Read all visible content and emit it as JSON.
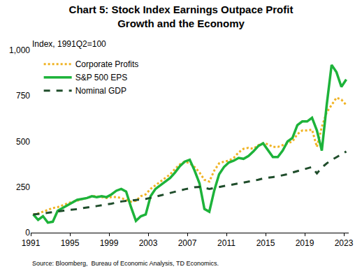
{
  "chart_data": {
    "type": "line",
    "title": [
      "Chart 5: Stock Index Earnings Outpace Profit",
      "Growth and the Economy"
    ],
    "ylabel": "Index, 1991Q2=100",
    "source": "Source: Bloomberg,  Bureau of Economic Analysis, TD Economics.",
    "x": [
      1991.25,
      1991.75,
      1992.25,
      1992.75,
      1993.25,
      1993.75,
      1994.25,
      1994.75,
      1995.25,
      1995.75,
      1996.25,
      1996.75,
      1997.25,
      1997.75,
      1998.25,
      1998.75,
      1999.25,
      1999.75,
      2000.25,
      2000.75,
      2001.25,
      2001.75,
      2002.25,
      2002.75,
      2003.25,
      2003.75,
      2004.25,
      2004.75,
      2005.25,
      2005.75,
      2006.25,
      2006.75,
      2007.25,
      2007.75,
      2008.25,
      2008.75,
      2009.25,
      2009.75,
      2010.25,
      2010.75,
      2011.25,
      2011.75,
      2012.25,
      2012.75,
      2013.25,
      2013.75,
      2014.25,
      2014.75,
      2015.25,
      2015.75,
      2016.25,
      2016.75,
      2017.25,
      2017.75,
      2018.25,
      2018.75,
      2019.25,
      2019.75,
      2020.25,
      2020.75,
      2021.25,
      2021.75,
      2022.25,
      2022.75,
      2023.25
    ],
    "series": [
      {
        "name": "Corporate Profits",
        "color": "#F0B323",
        "line_style": "dot",
        "values": [
          100,
          105,
          115,
          125,
          135,
          140,
          150,
          160,
          170,
          175,
          185,
          190,
          200,
          200,
          195,
          190,
          195,
          195,
          190,
          180,
          170,
          175,
          200,
          210,
          240,
          260,
          280,
          300,
          320,
          350,
          375,
          390,
          380,
          360,
          330,
          290,
          280,
          340,
          380,
          390,
          395,
          410,
          440,
          460,
          465,
          460,
          480,
          490,
          485,
          470,
          470,
          480,
          490,
          500,
          540,
          560,
          560,
          565,
          470,
          580,
          660,
          700,
          740,
          730,
          700
        ]
      },
      {
        "name": "S&P 500 EPS",
        "color": "#1DB33A",
        "line_style": "solid",
        "values": [
          100,
          70,
          90,
          55,
          60,
          120,
          135,
          150,
          165,
          180,
          185,
          190,
          200,
          195,
          200,
          195,
          210,
          230,
          240,
          225,
          140,
          65,
          90,
          100,
          200,
          240,
          260,
          280,
          300,
          330,
          365,
          390,
          400,
          340,
          270,
          130,
          115,
          230,
          320,
          360,
          385,
          395,
          410,
          405,
          420,
          445,
          475,
          490,
          450,
          415,
          415,
          450,
          500,
          520,
          590,
          610,
          610,
          630,
          560,
          450,
          700,
          920,
          880,
          800,
          840
        ]
      },
      {
        "name": "Nominal GDP",
        "color": "#1F4D2B",
        "line_style": "dash",
        "values": [
          100,
          102,
          106,
          109,
          112,
          115,
          120,
          124,
          126,
          129,
          134,
          137,
          142,
          146,
          150,
          154,
          159,
          165,
          171,
          174,
          176,
          178,
          182,
          185,
          190,
          197,
          204,
          211,
          218,
          226,
          233,
          238,
          243,
          249,
          251,
          246,
          240,
          245,
          251,
          256,
          260,
          265,
          271,
          274,
          279,
          285,
          290,
          297,
          302,
          305,
          309,
          315,
          321,
          330,
          338,
          345,
          352,
          360,
          325,
          357,
          380,
          399,
          414,
          428,
          445
        ]
      }
    ],
    "xlim": [
      1991,
      2023.5
    ],
    "xticks": [
      1991,
      1995,
      1999,
      2003,
      2007,
      2011,
      2015,
      2019,
      2023
    ],
    "ylim": [
      0,
      1000
    ],
    "yticks": [
      0,
      250,
      500,
      750,
      {
        "value": 1000,
        "label": "1,000"
      }
    ],
    "grid": false,
    "legend": "top left"
  }
}
